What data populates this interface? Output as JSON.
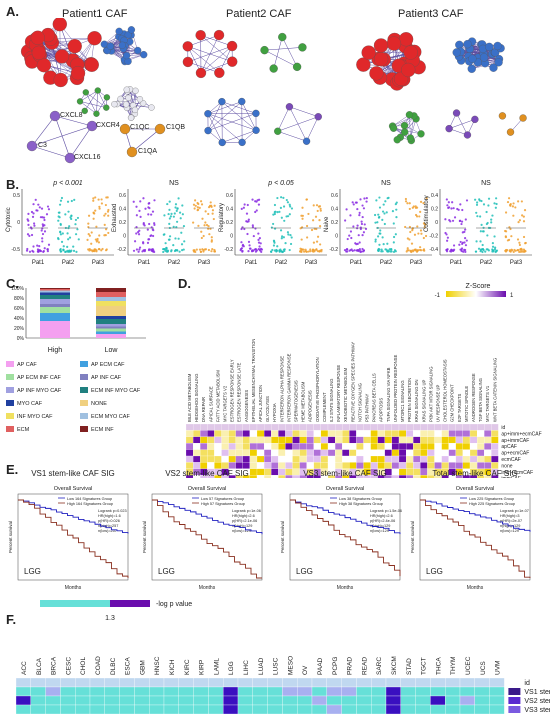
{
  "panels": {
    "A": {
      "letter": "A.",
      "titles": [
        "Patient1 CAF",
        "Patient2 CAF",
        "Patient3 CAF"
      ],
      "labels": [
        "CXCL8",
        "CXCR4",
        "C3",
        "CXCL16",
        "C1QC",
        "C1QB",
        "C1QA"
      ]
    },
    "B": {
      "letter": "B.",
      "plots": [
        {
          "ylabel": "Cytotoxic",
          "stat": "p < 0.001",
          "yticks": [
            "0.5",
            "0",
            "-0.5"
          ]
        },
        {
          "ylabel": "Exhausted",
          "stat": "NS",
          "yticks": [
            "0.6",
            "0.4",
            "0.2",
            "0",
            "-0.2"
          ]
        },
        {
          "ylabel": "Regulatory",
          "stat": "p < 0.05",
          "yticks": [
            "0.6",
            "0.4",
            "0.2",
            "0",
            "-0.2"
          ]
        },
        {
          "ylabel": "Naive",
          "stat": "NS",
          "yticks": [
            "0.6",
            "0.4",
            "0.2",
            "0",
            "-0.2"
          ]
        },
        {
          "ylabel": "Costimulatory",
          "stat": "NS",
          "yticks": [
            "0.4",
            "0.2",
            "0",
            "-0.2",
            "-0.4"
          ]
        }
      ],
      "xcats": [
        "Pat1",
        "Pat2",
        "Pat3"
      ],
      "colors": {
        "Pat1": "#8a2be2",
        "Pat2": "#20c0b8",
        "Pat3": "#f0a030"
      }
    },
    "C": {
      "letter": "C.",
      "yticks": [
        "100%",
        "80%",
        "60%",
        "40%",
        "20%",
        "0%"
      ],
      "cats": [
        "High",
        "Low"
      ],
      "legend": [
        {
          "label": "AP CAF",
          "color": "#f4a0f0"
        },
        {
          "label": "AP ECM CAF",
          "color": "#40a0e0"
        },
        {
          "label": "AP ECM INF CAF",
          "color": "#a0e0a0"
        },
        {
          "label": "AP INF CAF",
          "color": "#8080c0"
        },
        {
          "label": "AP INF MYO CAF",
          "color": "#a0a0e0"
        },
        {
          "label": "ECM INF MYO CAF",
          "color": "#208080"
        },
        {
          "label": "MYO CAF",
          "color": "#2040a0"
        },
        {
          "label": "NONE",
          "color": "#f0d080"
        },
        {
          "label": "INF MYO CAF",
          "color": "#f0e060"
        },
        {
          "label": "ECM MYO CAF",
          "color": "#a0c0e0"
        },
        {
          "label": "ECM",
          "color": "#e06060"
        },
        {
          "label": "ECM INF",
          "color": "#802020"
        }
      ]
    },
    "D": {
      "letter": "D.",
      "zlabel": "Z-Score",
      "zmin": "-1",
      "zmax": "1",
      "columns": [
        "BILE ACID METABOLISM",
        "HEDGEHOG SIGNALING",
        "DNA REPAIR",
        "APICAL SURFACE",
        "FATTY ACID METABOLISM",
        "MYC TARGETS V2",
        "ESTROGEN RESPONSE EARLY",
        "ESTROGEN RESPONSE LATE",
        "ANGIOGENESIS",
        "EPITHELIAL MESENCHYMAL TRANSITION",
        "APICAL JUNCTION",
        "GLYCOLYSIS",
        "HYPOXIA",
        "INTERFERON ALPHA RESPONSE",
        "INTERFERON GAMMA RESPONSE",
        "SPERMATOGENESIS",
        "HEME METABOLISM",
        "ADIPOGENESIS",
        "OXIDATIVE PHOSPHORYLATION",
        "COMPLEMENT",
        "IL2 STAT5 SIGNALING",
        "INFLAMMATORY RESPONSE",
        "XENOBIOTIC METABOLISM",
        "REACTIVE OXYGEN SPECIES PATHWAY",
        "NOTCH SIGNALING",
        "P53 PATHWAY",
        "PANCREAS BETA CELLS",
        "APOPTOSIS",
        "TNFA SIGNALING VIA NFKB",
        "UNFOLDED PROTEIN RESPONSE",
        "MTORC1 SIGNALING",
        "PROTEIN SECRETION",
        "KRAS SIGNALING DN",
        "KRAS SIGNALING UP",
        "PI3K AKT MTOR SIGNALING",
        "UV RESPONSE UP",
        "CHOLESTEROL HOMEOSTASIS",
        "G2M CHECKPOINT",
        "E2F TARGETS",
        "MITOTIC SPINDLE",
        "ANDROGEN RESPONSE",
        "TGF BETA SIGNALING",
        "MYC TARGETS V1",
        "WNT BETA CATENIN SIGNALING"
      ],
      "rows": [
        "id",
        "ap+imm+ecmCAF",
        "ap+immCAF",
        "apCAF",
        "ap+ecmCAF",
        "ecmCAF",
        "none",
        "imm+ecmCAF",
        "immCAF"
      ]
    },
    "E": {
      "letter": "E.",
      "plots": [
        {
          "title": "VS1 stem-like CAF SIG",
          "sub": "Overall Survival",
          "tag": "LGG",
          "legend": [
            "Low 164 Signatures Group",
            "High 164 Signatures Group"
          ],
          "stats": [
            "Logrank p=0.023",
            "HR(high)=1.6",
            "p(HR)=0.026",
            "n(high)=257",
            "n(low)=257"
          ]
        },
        {
          "title": "VS2 stem-like CAF SIG",
          "sub": "Overall Survival",
          "tag": "LGG",
          "legend": [
            "Low 57 Signatures Group",
            "High 57 Signatures Group"
          ],
          "stats": [
            "Logrank p=1e-06",
            "HR(high)=2.6",
            "p(HR)=2.1e-06",
            "n(high)=129",
            "n(low)=129"
          ]
        },
        {
          "title": "VS3 stem-like CAF SIG",
          "sub": "Overall Survival",
          "tag": "LGG",
          "legend": [
            "Low 38 Signatures Group",
            "High 38 Signatures Group"
          ],
          "stats": [
            "Logrank p=1.5e-06",
            "HR(high)=2.6",
            "p(HR)=2.4e-06",
            "n(high)=129",
            "n(low)=129"
          ]
        },
        {
          "title": "Total stem-like CAF SIG",
          "sub": "Overall Survival",
          "tag": "LGG",
          "legend": [
            "Low 225 Signatures Group",
            "High 225 Signatures Group"
          ],
          "stats": [
            "Logrank p=1e-07",
            "HR(high)=3",
            "p(HR)=2e-07",
            "n(high)=129",
            "n(low)=129"
          ]
        }
      ],
      "xlabel": "Months",
      "ylabel": "Percent survival"
    },
    "F": {
      "letter": "F.",
      "scale_value": "1.3",
      "scale_label": "-log p value",
      "columns": [
        "ACC",
        "BLCA",
        "BRCA",
        "CESC",
        "CHOL",
        "COAD",
        "DLBC",
        "ESCA",
        "GBM",
        "HNSC",
        "KICH",
        "KIRC",
        "KIRP",
        "LAML",
        "LGG",
        "LIHC",
        "LUAD",
        "LUSC",
        "MESO",
        "OV",
        "PAAD",
        "PCPG",
        "PRAD",
        "READ",
        "SARC",
        "SKCM",
        "STAD",
        "TGCT",
        "THCA",
        "THYM",
        "UCEC",
        "UCS",
        "UVM"
      ],
      "rows": [
        "id",
        "VS1 stem-like CAF SIG",
        "VS2 stem-like CAF SIG",
        "VS3 stem-like CAF SIG"
      ],
      "row_colors": [
        "#3a1a8a",
        "#5a2ad0",
        "#7a5ae0"
      ]
    }
  }
}
